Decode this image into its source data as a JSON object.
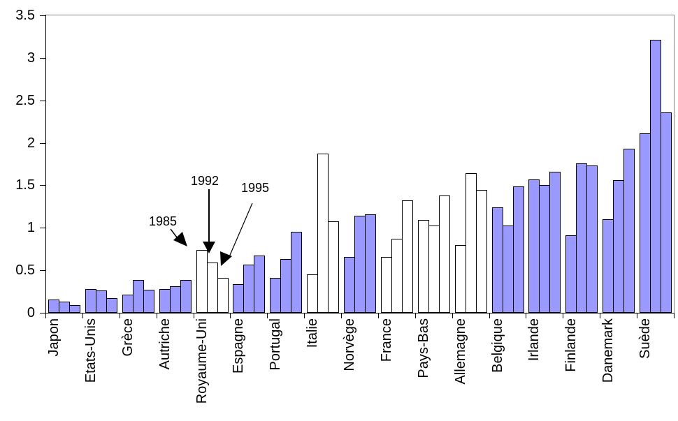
{
  "chart_data": {
    "type": "bar",
    "title": "",
    "xlabel": "",
    "ylabel": "",
    "categories": [
      "Japon",
      "Etats-Unis",
      "Grèce",
      "Autriche",
      "Royaume-Uni",
      "Espagne",
      "Portugal",
      "Italie",
      "Norvège",
      "France",
      "Pays-Bas",
      "Allemagne",
      "Belgique",
      "Irlande",
      "Finlande",
      "Danemark",
      "Suède"
    ],
    "series": [
      {
        "name": "1985",
        "values": [
          0.16,
          0.28,
          0.21,
          0.28,
          0.74,
          0.34,
          0.41,
          0.45,
          0.66,
          0.66,
          1.09,
          0.8,
          1.24,
          1.57,
          0.91,
          1.1,
          2.11
        ]
      },
      {
        "name": "1992",
        "values": [
          0.13,
          0.26,
          0.39,
          0.31,
          0.59,
          0.57,
          0.63,
          1.87,
          1.14,
          0.87,
          1.03,
          1.64,
          1.03,
          1.5,
          1.76,
          1.56,
          3.21
        ]
      },
      {
        "name": "1995",
        "values": [
          0.09,
          0.17,
          0.27,
          0.39,
          0.41,
          0.67,
          0.95,
          1.08,
          1.16,
          1.32,
          1.38,
          1.45,
          1.49,
          1.66,
          1.73,
          1.93,
          2.36
        ]
      }
    ],
    "white_fill_categories": [
      "Royaume-Uni",
      "Italie",
      "France",
      "Pays-Bas",
      "Allemagne"
    ],
    "y_axis": {
      "min": 0,
      "max": 3.5,
      "step": 0.5,
      "tick_labels": [
        "0",
        "0.5",
        "1",
        "1.5",
        "2",
        "2.5",
        "3",
        "3.5"
      ]
    },
    "colors": {
      "bar_fill_blue": "#9999FF",
      "bar_fill_white": "#FFFFFF",
      "bar_border": "#000000",
      "axis": "#000000",
      "plot_border_gray": "#848284"
    },
    "legend": "none",
    "grid": false,
    "annotations": [
      {
        "label": "1985",
        "points_to": "Royaume-Uni first bar"
      },
      {
        "label": "1992",
        "points_to": "Royaume-Uni second bar"
      },
      {
        "label": "1995",
        "points_to": "Royaume-Uni third bar"
      }
    ]
  }
}
